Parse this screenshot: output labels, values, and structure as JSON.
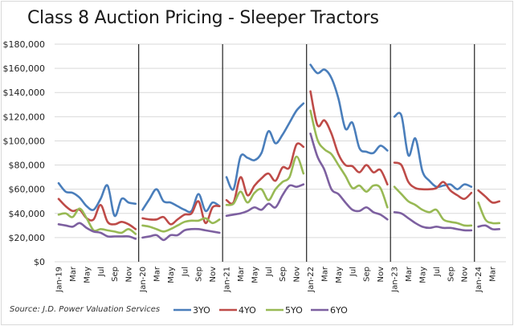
{
  "chart_data": {
    "type": "line",
    "title": "Class 8 Auction Pricing - Sleeper Tractors",
    "source": "Source: J.D. Power Valuation Services",
    "xlabel": "",
    "ylabel": "",
    "ylim": [
      0,
      180000
    ],
    "yticks": [
      0,
      20000,
      40000,
      60000,
      80000,
      100000,
      120000,
      140000,
      160000,
      180000
    ],
    "ytick_labels": [
      "$0",
      "$20,000",
      "$40,000",
      "$60,000",
      "$80,000",
      "$100,000",
      "$120,000",
      "$140,000",
      "$160,000",
      "$180,000"
    ],
    "grid": true,
    "legend_position": "bottom",
    "year_separators": [
      "Jan-20",
      "Jan-21",
      "Jan-22",
      "Jan-23",
      "Jan-24"
    ],
    "xtick_labels": [
      "Jan-19",
      "Mar",
      "May",
      "Jul",
      "Sep",
      "Nov",
      "Jan-20",
      "Mar",
      "May",
      "Jul",
      "Sep",
      "Nov",
      "Jan-21",
      "Mar",
      "May",
      "Jul",
      "Sep",
      "Nov",
      "Jan-22",
      "Mar",
      "May",
      "Jul",
      "Sep",
      "Nov",
      "Jan-23",
      "Mar",
      "May",
      "Jul",
      "Sep",
      "Nov",
      "Jan-24",
      "Mar"
    ],
    "x": [
      "Jan-19",
      "Feb-19",
      "Mar-19",
      "Apr-19",
      "May-19",
      "Jun-19",
      "Jul-19",
      "Aug-19",
      "Sep-19",
      "Oct-19",
      "Nov-19",
      "Dec-19",
      "Jan-20",
      "Feb-20",
      "Mar-20",
      "Apr-20",
      "May-20",
      "Jun-20",
      "Jul-20",
      "Aug-20",
      "Sep-20",
      "Oct-20",
      "Nov-20",
      "Dec-20",
      "Jan-21",
      "Feb-21",
      "Mar-21",
      "Apr-21",
      "May-21",
      "Jun-21",
      "Jul-21",
      "Aug-21",
      "Sep-21",
      "Oct-21",
      "Nov-21",
      "Dec-21",
      "Jan-22",
      "Feb-22",
      "Mar-22",
      "Apr-22",
      "May-22",
      "Jun-22",
      "Jul-22",
      "Aug-22",
      "Sep-22",
      "Oct-22",
      "Nov-22",
      "Dec-22",
      "Jan-23",
      "Feb-23",
      "Mar-23",
      "Apr-23",
      "May-23",
      "Jun-23",
      "Jul-23",
      "Aug-23",
      "Sep-23",
      "Oct-23",
      "Nov-23",
      "Dec-23",
      "Jan-24",
      "Feb-24",
      "Mar-24",
      "Apr-24"
    ],
    "series": [
      {
        "name": "3YO",
        "color": "#4a7ebb",
        "values": [
          65000,
          58000,
          57000,
          53000,
          46000,
          43000,
          52000,
          63000,
          38000,
          52000,
          49000,
          48000,
          43000,
          52000,
          60000,
          50000,
          49000,
          46000,
          43000,
          42000,
          56000,
          42000,
          49000,
          46000,
          70000,
          60000,
          87000,
          86000,
          84000,
          90000,
          108000,
          98000,
          105000,
          115000,
          125000,
          131000,
          163000,
          156000,
          159000,
          152000,
          135000,
          110000,
          115000,
          94000,
          91000,
          90000,
          96000,
          92000,
          120000,
          121000,
          88000,
          102000,
          75000,
          67000,
          62000,
          63000,
          64000,
          60000,
          64000,
          62000,
          null,
          null,
          null,
          null
        ]
      },
      {
        "name": "4YO",
        "color": "#be4b48",
        "values": [
          52000,
          46000,
          42000,
          43000,
          36000,
          35000,
          47000,
          33000,
          31000,
          33000,
          31000,
          27000,
          36000,
          35000,
          35000,
          37000,
          31000,
          35000,
          39000,
          40000,
          50000,
          32000,
          45000,
          46000,
          51000,
          49000,
          70000,
          55000,
          63000,
          69000,
          73000,
          67000,
          78000,
          78000,
          97000,
          95000,
          141000,
          113000,
          117000,
          106000,
          89000,
          80000,
          79000,
          74000,
          80000,
          74000,
          76000,
          64000,
          82000,
          80000,
          66000,
          61000,
          60000,
          60000,
          61000,
          66000,
          59000,
          55000,
          52000,
          57000,
          59000,
          54000,
          49000,
          50000
        ]
      },
      {
        "name": "5YO",
        "color": "#98b954",
        "values": [
          39000,
          40000,
          37000,
          44000,
          36000,
          26000,
          27000,
          26000,
          25000,
          24000,
          27000,
          23000,
          30000,
          29000,
          27000,
          25000,
          27000,
          30000,
          33000,
          34000,
          34000,
          36000,
          32000,
          35000,
          47000,
          48000,
          58000,
          49000,
          57000,
          60000,
          51000,
          60000,
          66000,
          70000,
          87000,
          73000,
          125000,
          101000,
          93000,
          89000,
          80000,
          71000,
          61000,
          63000,
          58000,
          63000,
          61000,
          45000,
          62000,
          56000,
          50000,
          47000,
          43000,
          41000,
          43000,
          35000,
          33000,
          32000,
          30000,
          30000,
          49000,
          35000,
          32000,
          32000
        ]
      },
      {
        "name": "6YO",
        "color": "#7d60a0",
        "values": [
          31000,
          30000,
          29000,
          32000,
          28000,
          25000,
          24000,
          21000,
          21000,
          21000,
          21000,
          19000,
          20000,
          21000,
          22000,
          18000,
          22000,
          22000,
          26000,
          27000,
          27000,
          26000,
          25000,
          24000,
          38000,
          39000,
          40000,
          42000,
          45000,
          43000,
          48000,
          45000,
          55000,
          63000,
          62000,
          64000,
          106000,
          87000,
          76000,
          60000,
          56000,
          49000,
          43000,
          42000,
          45000,
          41000,
          39000,
          35000,
          41000,
          40000,
          36000,
          32000,
          29000,
          28000,
          29000,
          28000,
          28000,
          27000,
          26000,
          26000,
          29000,
          30000,
          27000,
          27000
        ]
      }
    ]
  }
}
